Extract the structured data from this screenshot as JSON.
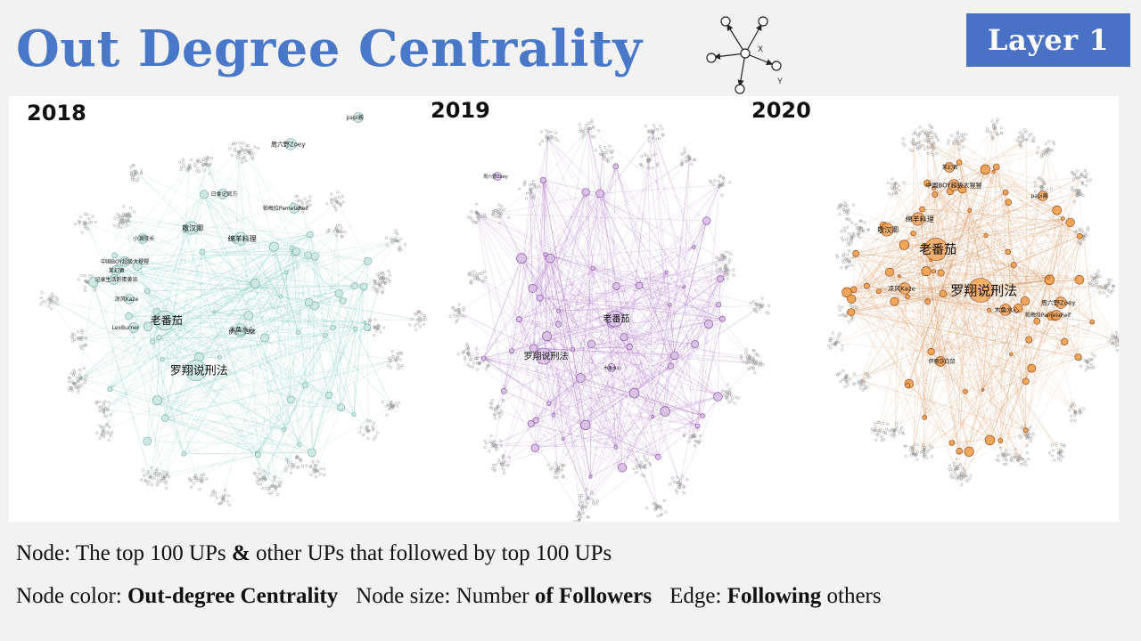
{
  "title": "Out Degree Centrality",
  "badge": "Layer 1",
  "icon": {
    "name": "directed-graph-icon",
    "label_x": "X",
    "label_y": "Y"
  },
  "networks": [
    {
      "year": "2018",
      "palette": {
        "node": "#cfe8e3",
        "node_stroke": "#6aa9a0",
        "edge": "#7fc7bd",
        "cluster": "#9a9a9a"
      },
      "labels": [
        "papi酱",
        "周六野Zoey",
        "日食记官方",
        "帕梅拉PamelaReif",
        "敬汉卿",
        "小潮院长",
        "绵羊料理",
        "中国BOY超级大猩猩",
        "某幻君",
        "记录生活的蛋黄派",
        "凉风Kaze",
        "LexBurner",
        "老番茄",
        "伊丽莎白鼠",
        "木鱼水心",
        "罗翔说刑法"
      ]
    },
    {
      "year": "2019",
      "palette": {
        "node": "#d9c2e6",
        "node_stroke": "#7d3f9a",
        "edge": "#b07cc8",
        "cluster": "#9a9a9a"
      },
      "labels": [
        "周六野Zoey",
        "老番茄",
        "罗翔说刑法",
        "木鱼水心"
      ]
    },
    {
      "year": "2020",
      "palette": {
        "node": "#f2a65a",
        "node_stroke": "#8a3b0a",
        "edge": "#d9a070",
        "cluster": "#9a9a9a"
      },
      "labels": [
        "某幻君",
        "中国BOY超级大猩猩",
        "papi酱",
        "绵羊料理",
        "敬汉卿",
        "老番茄",
        "凉风Kaze",
        "罗翔说刑法",
        "周六野Zoey",
        "木鱼水心",
        "帕梅拉PamelaReif",
        "伊丽莎白鼠"
      ]
    }
  ],
  "footer": {
    "line1": {
      "a": "Node: The top 100 UPs ",
      "b": "&",
      "c": " other UPs that followed by top 100 UPs"
    },
    "line2": {
      "k1": "Node color: ",
      "v1": "Out-degree Centrality",
      "k2": "Node size: Number ",
      "v2": "of Followers",
      "k3": "Edge: ",
      "v3": "Following",
      "k4": " others"
    }
  }
}
